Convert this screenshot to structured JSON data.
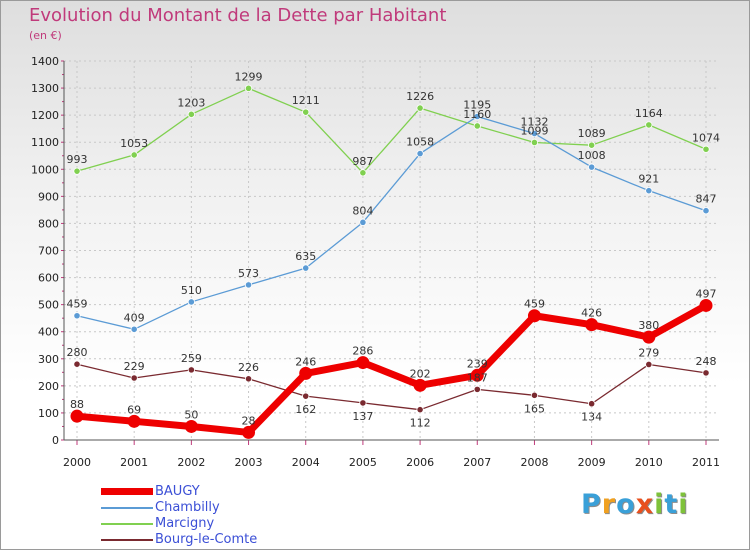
{
  "title": "Evolution du Montant de la Dette par Habitant",
  "unit": "(en €)",
  "logo": {
    "letters": [
      "P",
      "r",
      "o",
      "x",
      "i",
      "t",
      "i"
    ],
    "colors": [
      "#3aa0d8",
      "#f0a020",
      "#3aa0d8",
      "#e8501e",
      "#7ec23a",
      "#3aa0d8",
      "#7ec23a"
    ]
  },
  "chart_data": {
    "type": "line",
    "title": "Evolution du Montant de la Dette par Habitant",
    "ylabel": "(en €)",
    "xlabel": "",
    "x": [
      "2000",
      "2001",
      "2002",
      "2003",
      "2004",
      "2005",
      "2006",
      "2007",
      "2008",
      "2009",
      "2010",
      "2011"
    ],
    "ylim": [
      0,
      1400
    ],
    "yticks": [
      "0",
      "100",
      "200",
      "300",
      "400",
      "500",
      "600",
      "700",
      "800",
      "900",
      "1000",
      "1100",
      "1200",
      "1300",
      "1400"
    ],
    "grid": true,
    "legend": "bottom-left",
    "series": [
      {
        "name": "BAUGY",
        "color": "#ee0000",
        "values": [
          88,
          69,
          50,
          28,
          246,
          286,
          202,
          239,
          459,
          426,
          380,
          497
        ]
      },
      {
        "name": "Chambilly",
        "color": "#5b9bd5",
        "values": [
          459,
          409,
          510,
          573,
          635,
          804,
          1058,
          1195,
          1132,
          1008,
          921,
          847
        ]
      },
      {
        "name": "Marcigny",
        "color": "#80d050",
        "values": [
          993,
          1053,
          1203,
          1299,
          1211,
          987,
          1226,
          1160,
          1099,
          1089,
          1164,
          1074
        ]
      },
      {
        "name": "Bourg-le-Comte",
        "color": "#7a2a30",
        "values": [
          280,
          229,
          259,
          226,
          162,
          137,
          112,
          187,
          165,
          134,
          279,
          248
        ]
      }
    ]
  }
}
